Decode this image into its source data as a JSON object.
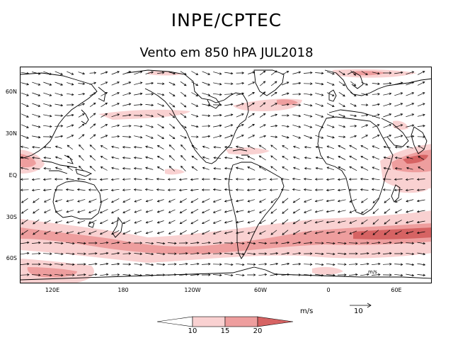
{
  "header": {
    "title": "INPE/CPTEC",
    "subtitle": "Vento em 850 hPA JUL2018"
  },
  "map": {
    "lat_labels": [
      "60N",
      "30N",
      "EQ",
      "30S",
      "60S"
    ],
    "lon_labels": [
      "120E",
      "180",
      "120W",
      "60W",
      "0",
      "60E"
    ],
    "inner_ref_label": "m/s"
  },
  "legend": {
    "units": "m/s",
    "reference_vector": "10",
    "thresholds": [
      "10",
      "15",
      "20"
    ],
    "colors": {
      "light": "#f9d1d1",
      "medium": "#ee9e9e",
      "dark": "#d66363",
      "coast": "#000000"
    }
  }
}
